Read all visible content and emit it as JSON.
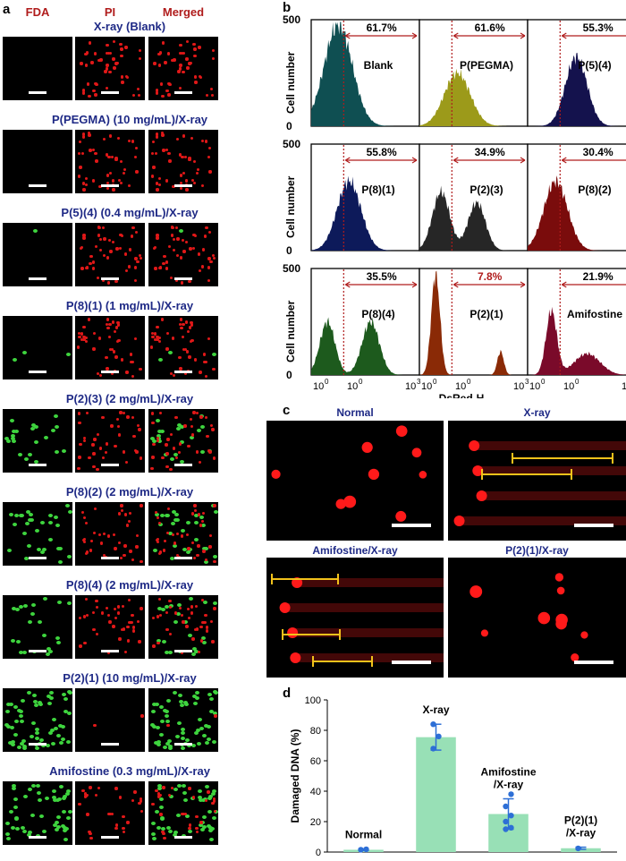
{
  "panel_a": {
    "letter": "a",
    "col_heads": [
      "FDA",
      "PI",
      "Merged"
    ],
    "rows": [
      {
        "label": "X-ray (Blank)",
        "green": 0
      },
      {
        "label": "P(PEGMA) (10 mg/mL)/X-ray",
        "green": 0
      },
      {
        "label": "P(5)(4) (0.4 mg/mL)/X-ray",
        "green": 1
      },
      {
        "label": "P(8)(1) (1 mg/mL)/X-ray",
        "green": 3
      },
      {
        "label": "P(2)(3) (2 mg/mL)/X-ray",
        "green": 22
      },
      {
        "label": "P(8)(2) (2 mg/mL)/X-ray",
        "green": 30
      },
      {
        "label": "P(8)(4) (2 mg/mL)/X-ray",
        "green": 22
      },
      {
        "label": "P(2)(1) (10 mg/mL)/X-ray",
        "green": 60
      },
      {
        "label": "Amifostine (0.3 mg/mL)/X-ray",
        "green": 50
      }
    ]
  },
  "panel_b": {
    "letter": "b",
    "ylabel": "Cell number",
    "xlabel": "DsRed-H",
    "ytick_top": "500",
    "ytick_zero": "0",
    "xticks": [
      "10",
      "10",
      "10"
    ],
    "xtick_exps": [
      "0",
      "0",
      "3"
    ],
    "histograms": [
      {
        "name": "Blank",
        "pct": "61.7%",
        "color": "#0f4f52",
        "pct_color": "#000000"
      },
      {
        "name": "P(PEGMA)",
        "pct": "61.6%",
        "color": "#9c9a1a",
        "pct_color": "#000000"
      },
      {
        "name": "P(5)(4)",
        "pct": "55.3%",
        "color": "#14124d",
        "pct_color": "#000000"
      },
      {
        "name": "P(8)(1)",
        "pct": "55.8%",
        "color": "#0d1a5a",
        "pct_color": "#000000"
      },
      {
        "name": "P(2)(3)",
        "pct": "34.9%",
        "color": "#262626",
        "pct_color": "#000000"
      },
      {
        "name": "P(8)(2)",
        "pct": "30.4%",
        "color": "#7a0c0c",
        "pct_color": "#000000"
      },
      {
        "name": "P(8)(4)",
        "pct": "35.5%",
        "color": "#1d5a1d",
        "pct_color": "#000000"
      },
      {
        "name": "P(2)(1)",
        "pct": "7.8%",
        "color": "#8a2a06",
        "pct_color": "#b01c1c"
      },
      {
        "name": "Amifostine",
        "pct": "21.9%",
        "color": "#7a0a2a",
        "pct_color": "#000000"
      }
    ]
  },
  "panel_c": {
    "letter": "c",
    "titles": [
      "Normal",
      "X-ray",
      "Amifostine/X-ray",
      "P(2)(1)/X-ray"
    ]
  },
  "panel_d": {
    "letter": "d",
    "ylabel": "Damaged DNA (%)"
  },
  "chart_data": {
    "type": "bar",
    "categories": [
      "Normal",
      "X-ray",
      "Amifostine\n/X-ray",
      "P(2)(1)\n/X-ray"
    ],
    "values": [
      1.5,
      75.5,
      25,
      2.5
    ],
    "error": [
      0.5,
      8.5,
      10,
      0.7
    ],
    "points": [
      [
        1.5,
        1.8
      ],
      [
        68,
        76,
        84
      ],
      [
        15,
        16,
        20,
        24,
        30,
        38
      ],
      [
        2.4
      ]
    ],
    "ylabel": "Damaged DNA (%)",
    "ylim": [
      0,
      100
    ],
    "yticks": [
      0,
      20,
      40,
      60,
      80,
      100
    ],
    "bar_color": "#98e0b6",
    "point_color": "#2d6fd6"
  }
}
